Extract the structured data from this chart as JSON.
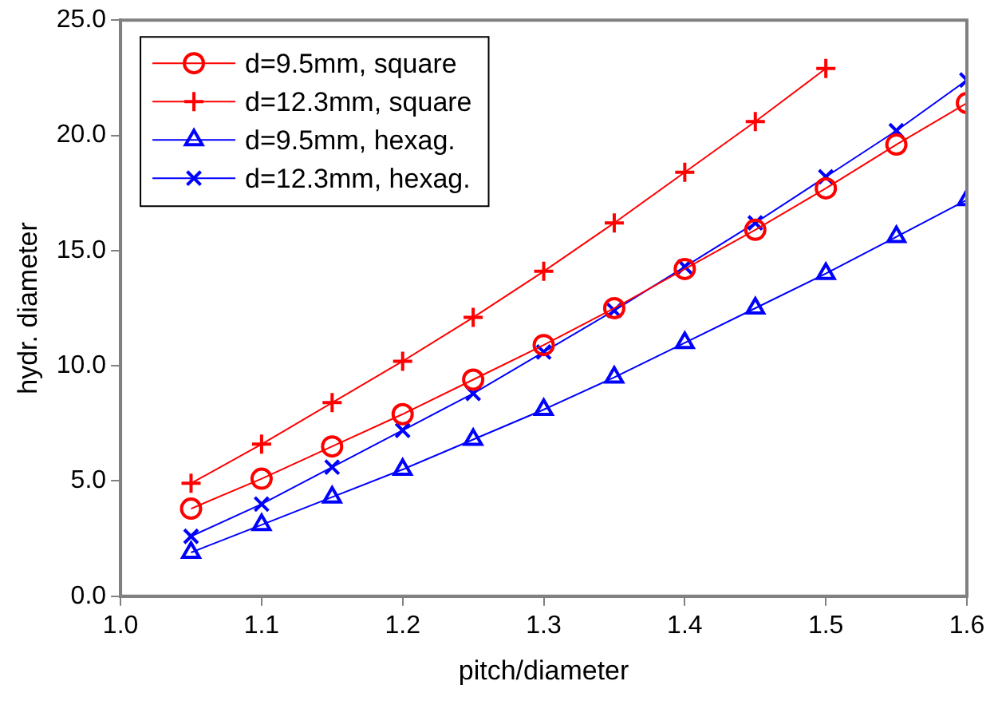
{
  "chart_data": {
    "type": "line",
    "xlabel": "pitch/diameter",
    "ylabel": "hydr. diameter",
    "x": [
      1.05,
      1.1,
      1.15,
      1.2,
      1.25,
      1.3,
      1.35,
      1.4,
      1.45,
      1.5,
      1.55,
      1.6
    ],
    "series": [
      {
        "name": "d=9.5mm, square",
        "color": "#ff0000",
        "marker": "circle",
        "values": [
          3.8,
          5.1,
          6.5,
          7.9,
          9.4,
          10.9,
          12.5,
          14.2,
          15.9,
          17.7,
          19.6,
          21.4
        ]
      },
      {
        "name": "d=12.3mm, square",
        "color": "#ff0000",
        "marker": "cross",
        "values": [
          4.9,
          6.6,
          8.4,
          10.2,
          12.1,
          14.1,
          16.2,
          18.4,
          20.6,
          22.9,
          null,
          null
        ]
      },
      {
        "name": "d=9.5mm, hexag.",
        "color": "#0000ff",
        "marker": "triangle",
        "values": [
          1.9,
          3.1,
          4.3,
          5.5,
          6.8,
          8.1,
          9.5,
          11.0,
          12.5,
          14.0,
          15.6,
          17.2
        ]
      },
      {
        "name": "d=12.3mm, hexag.",
        "color": "#0000ff",
        "marker": "x",
        "values": [
          2.6,
          4.0,
          5.6,
          7.2,
          8.8,
          10.6,
          12.4,
          14.3,
          16.2,
          18.2,
          20.2,
          22.4
        ]
      }
    ],
    "xlim": [
      1.0,
      1.6
    ],
    "xticks": [
      {
        "value": 1.0,
        "label": "1.0"
      },
      {
        "value": 1.1,
        "label": "1.1"
      },
      {
        "value": 1.2,
        "label": "1.2"
      },
      {
        "value": 1.3,
        "label": "1.3"
      },
      {
        "value": 1.4,
        "label": "1.4"
      },
      {
        "value": 1.5,
        "label": "1.5"
      },
      {
        "value": 1.6,
        "label": "1.6"
      }
    ],
    "ylim": [
      0,
      25
    ],
    "yticks": [
      {
        "value": 0,
        "label": "0.0"
      },
      {
        "value": 5,
        "label": "5.0"
      },
      {
        "value": 10,
        "label": "10.0"
      },
      {
        "value": 15,
        "label": "15.0"
      },
      {
        "value": 20,
        "label": "20.0"
      },
      {
        "value": 25,
        "label": "25.0"
      }
    ],
    "grid": false,
    "legend": "top left",
    "line_style": "solid"
  }
}
